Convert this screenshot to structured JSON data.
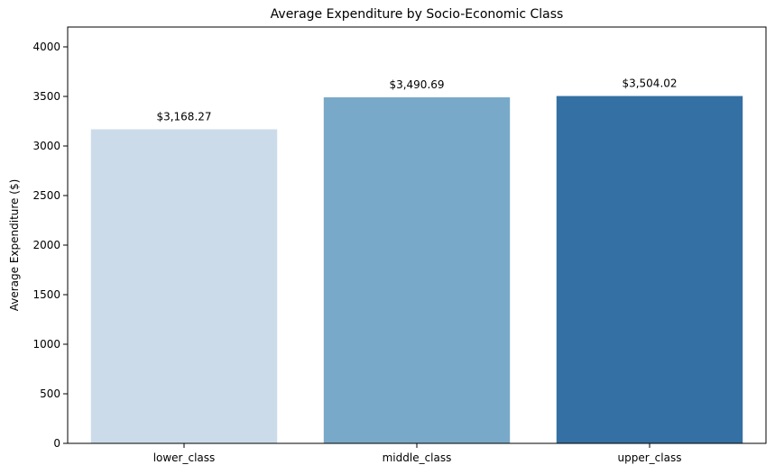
{
  "chart_data": {
    "type": "bar",
    "title": "Average Expenditure by Socio-Economic Class",
    "xlabel": "",
    "ylabel": "Average Expenditure ($)",
    "categories": [
      "lower_class",
      "middle_class",
      "upper_class"
    ],
    "values": [
      3168.27,
      3490.69,
      3504.02
    ],
    "data_labels": [
      "$3,168.27",
      "$3,490.69",
      "$3,504.02"
    ],
    "colors": [
      "#cbdbea",
      "#78a9c8",
      "#3470a3"
    ],
    "ylim": [
      0,
      4200
    ],
    "yticks": [
      0,
      500,
      1000,
      1500,
      2000,
      2500,
      3000,
      3500,
      4000
    ],
    "grid": false,
    "legend": "none"
  }
}
